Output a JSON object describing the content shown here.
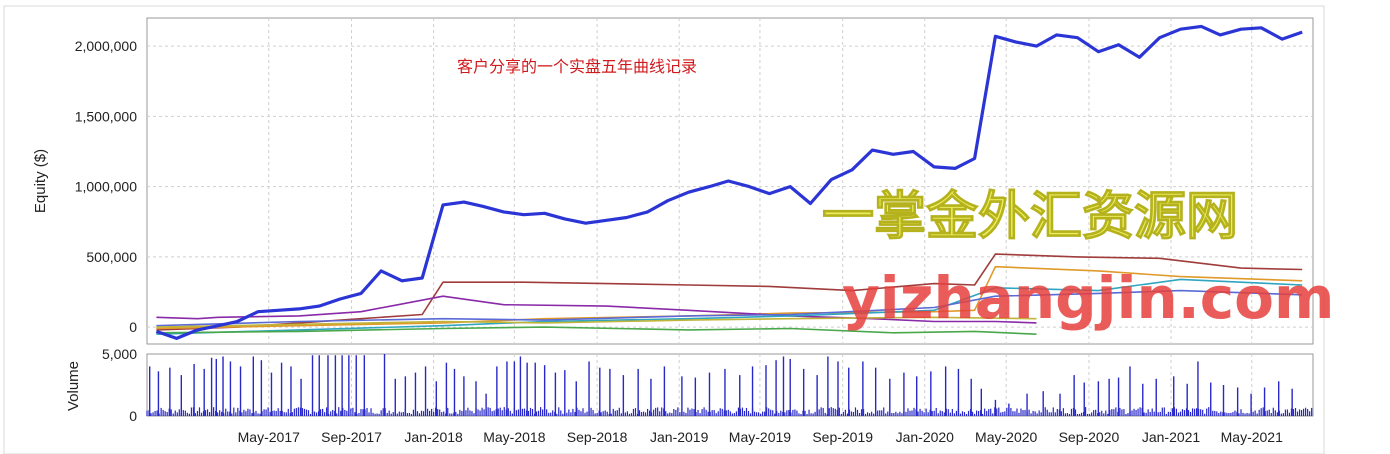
{
  "chart_data": [
    {
      "type": "line",
      "ylabel": "Equity ($)",
      "ylim": [
        -120000,
        2200000
      ],
      "yticks": [
        0,
        500000,
        1000000,
        1500000,
        2000000
      ],
      "ytick_labels": [
        "0",
        "500,000",
        "1,000,000",
        "1,500,000",
        "2,000,000"
      ],
      "grid": true,
      "annotation": "客户分享的一个实盘五年曲线记录",
      "series": [
        {
          "color": "#2b35d6",
          "x": [
            "2016-11",
            "2016-12",
            "2017-01",
            "2017-02",
            "2017-03",
            "2017-04",
            "2017-05",
            "2017-06",
            "2017-07",
            "2017-08",
            "2017-09",
            "2017-10",
            "2017-11",
            "2017-12",
            "2018-01",
            "2018-02",
            "2018-03",
            "2018-04",
            "2018-05",
            "2018-06",
            "2018-07",
            "2018-08",
            "2018-09",
            "2018-10",
            "2018-11",
            "2018-12",
            "2019-01",
            "2019-02",
            "2019-03",
            "2019-04",
            "2019-05",
            "2019-06",
            "2019-07",
            "2019-08",
            "2019-09",
            "2019-10",
            "2019-11",
            "2019-12",
            "2020-01",
            "2020-02",
            "2020-03",
            "2020-04",
            "2020-05",
            "2020-06",
            "2020-07",
            "2020-08",
            "2020-09",
            "2020-10",
            "2020-11",
            "2020-12",
            "2021-01",
            "2021-02",
            "2021-03",
            "2021-04",
            "2021-05",
            "2021-06",
            "2021-07"
          ],
          "y": [
            -30000,
            -80000,
            -20000,
            10000,
            40000,
            110000,
            120000,
            130000,
            150000,
            200000,
            240000,
            400000,
            330000,
            350000,
            870000,
            890000,
            860000,
            820000,
            800000,
            810000,
            770000,
            740000,
            760000,
            780000,
            820000,
            900000,
            960000,
            1000000,
            1040000,
            1000000,
            950000,
            1000000,
            880000,
            1050000,
            1120000,
            1260000,
            1230000,
            1250000,
            1140000,
            1130000,
            1200000,
            2070000,
            2030000,
            2000000,
            2080000,
            2060000,
            1960000,
            2010000,
            1920000,
            2060000,
            2120000,
            2140000,
            2080000,
            2120000,
            2130000,
            2050000,
            2100000
          ]
        },
        {
          "color": "#a03c3c",
          "x": [
            "2016-11",
            "2017-03",
            "2017-06",
            "2017-09",
            "2017-12",
            "2018-01",
            "2018-05",
            "2018-09",
            "2019-01",
            "2019-05",
            "2019-09",
            "2020-01",
            "2020-03",
            "2020-04",
            "2020-08",
            "2020-12",
            "2021-04",
            "2021-07"
          ],
          "y": [
            -20000,
            0,
            30000,
            60000,
            90000,
            320000,
            320000,
            310000,
            300000,
            290000,
            260000,
            310000,
            300000,
            520000,
            500000,
            490000,
            420000,
            410000
          ]
        },
        {
          "color": "#e09a2a",
          "x": [
            "2016-11",
            "2017-06",
            "2018-01",
            "2018-06",
            "2019-01",
            "2019-06",
            "2020-01",
            "2020-03",
            "2020-04",
            "2020-09",
            "2021-01",
            "2021-07"
          ],
          "y": [
            -10000,
            10000,
            30000,
            60000,
            80000,
            100000,
            110000,
            120000,
            430000,
            400000,
            360000,
            330000
          ]
        },
        {
          "color": "#8a2aa8",
          "x": [
            "2016-11",
            "2017-01",
            "2017-02",
            "2017-06",
            "2017-09",
            "2018-01",
            "2018-04",
            "2018-09",
            "2019-01",
            "2019-06",
            "2019-10",
            "2020-01",
            "2020-04",
            "2020-06"
          ],
          "y": [
            70000,
            60000,
            70000,
            80000,
            110000,
            220000,
            160000,
            150000,
            120000,
            80000,
            60000,
            40000,
            40000,
            30000
          ]
        },
        {
          "color": "#2fa5c0",
          "x": [
            "2016-11",
            "2017-06",
            "2018-01",
            "2018-06",
            "2019-01",
            "2019-06",
            "2020-01",
            "2020-04",
            "2020-09",
            "2021-01",
            "2021-07"
          ],
          "y": [
            -50000,
            -20000,
            10000,
            40000,
            60000,
            80000,
            120000,
            280000,
            260000,
            340000,
            300000
          ]
        },
        {
          "color": "#4aa84a",
          "x": [
            "2016-11",
            "2017-06",
            "2018-01",
            "2018-06",
            "2019-01",
            "2019-06",
            "2019-11",
            "2020-03",
            "2020-06"
          ],
          "y": [
            -40000,
            -30000,
            -10000,
            0,
            -20000,
            -10000,
            -40000,
            -30000,
            -50000
          ]
        },
        {
          "color": "#5a6ad6",
          "x": [
            "2016-11",
            "2017-06",
            "2018-01",
            "2018-06",
            "2019-01",
            "2019-06",
            "2020-01",
            "2020-04",
            "2020-09",
            "2021-01",
            "2021-07"
          ],
          "y": [
            10000,
            40000,
            60000,
            50000,
            80000,
            90000,
            140000,
            220000,
            240000,
            260000,
            230000
          ]
        },
        {
          "color": "#c0b43a",
          "x": [
            "2016-11",
            "2017-06",
            "2018-01",
            "2018-06",
            "2019-01",
            "2019-06",
            "2020-01",
            "2020-06"
          ],
          "y": [
            0,
            20000,
            40000,
            30000,
            50000,
            60000,
            70000,
            60000
          ]
        }
      ]
    },
    {
      "type": "bar",
      "ylabel": "Volume",
      "ylim": [
        0,
        5000
      ],
      "yticks": [
        0,
        5000
      ],
      "ytick_labels": [
        "0",
        "5,000"
      ],
      "bar_color": "#2828c8",
      "tall_bars": [
        {
          "x": "2016-11-05",
          "v": 4000
        },
        {
          "x": "2016-11-18",
          "v": 3600
        },
        {
          "x": "2016-12-05",
          "v": 3900
        },
        {
          "x": "2016-12-22",
          "v": 3300
        },
        {
          "x": "2017-01-10",
          "v": 4200
        },
        {
          "x": "2017-01-25",
          "v": 3800
        },
        {
          "x": "2017-02-05",
          "v": 4700
        },
        {
          "x": "2017-02-12",
          "v": 4600
        },
        {
          "x": "2017-02-22",
          "v": 4800
        },
        {
          "x": "2017-03-05",
          "v": 4400
        },
        {
          "x": "2017-03-20",
          "v": 4000
        },
        {
          "x": "2017-04-08",
          "v": 4800
        },
        {
          "x": "2017-04-20",
          "v": 4500
        },
        {
          "x": "2017-05-05",
          "v": 3500
        },
        {
          "x": "2017-05-20",
          "v": 4300
        },
        {
          "x": "2017-06-03",
          "v": 4000
        },
        {
          "x": "2017-06-18",
          "v": 3000
        },
        {
          "x": "2017-07-05",
          "v": 4900
        },
        {
          "x": "2017-07-15",
          "v": 4900
        },
        {
          "x": "2017-07-28",
          "v": 4900
        },
        {
          "x": "2017-08-08",
          "v": 4900
        },
        {
          "x": "2017-08-18",
          "v": 4900
        },
        {
          "x": "2017-08-28",
          "v": 4900
        },
        {
          "x": "2017-09-08",
          "v": 4900
        },
        {
          "x": "2017-09-20",
          "v": 4900
        },
        {
          "x": "2017-10-20",
          "v": 5000
        },
        {
          "x": "2017-11-05",
          "v": 3000
        },
        {
          "x": "2017-11-20",
          "v": 3200
        },
        {
          "x": "2017-12-05",
          "v": 3500
        },
        {
          "x": "2017-12-20",
          "v": 4000
        },
        {
          "x": "2018-01-05",
          "v": 2800
        },
        {
          "x": "2018-01-20",
          "v": 4300
        },
        {
          "x": "2018-02-01",
          "v": 3800
        },
        {
          "x": "2018-02-15",
          "v": 3200
        },
        {
          "x": "2018-03-05",
          "v": 2800
        },
        {
          "x": "2018-03-20",
          "v": 1800
        },
        {
          "x": "2018-04-05",
          "v": 4000
        },
        {
          "x": "2018-04-20",
          "v": 4400
        },
        {
          "x": "2018-05-01",
          "v": 4400
        },
        {
          "x": "2018-05-10",
          "v": 4800
        },
        {
          "x": "2018-05-20",
          "v": 4300
        },
        {
          "x": "2018-06-01",
          "v": 4300
        },
        {
          "x": "2018-06-15",
          "v": 4100
        },
        {
          "x": "2018-07-01",
          "v": 3500
        },
        {
          "x": "2018-07-15",
          "v": 3700
        },
        {
          "x": "2018-08-01",
          "v": 2800
        },
        {
          "x": "2018-08-20",
          "v": 4400
        },
        {
          "x": "2018-09-05",
          "v": 3900
        },
        {
          "x": "2018-09-20",
          "v": 3800
        },
        {
          "x": "2018-10-10",
          "v": 3300
        },
        {
          "x": "2018-11-01",
          "v": 3800
        },
        {
          "x": "2018-11-20",
          "v": 3000
        },
        {
          "x": "2018-12-10",
          "v": 4000
        },
        {
          "x": "2019-01-05",
          "v": 3200
        },
        {
          "x": "2019-01-25",
          "v": 3100
        },
        {
          "x": "2019-02-15",
          "v": 3500
        },
        {
          "x": "2019-03-10",
          "v": 3800
        },
        {
          "x": "2019-04-01",
          "v": 3300
        },
        {
          "x": "2019-04-20",
          "v": 4000
        },
        {
          "x": "2019-05-10",
          "v": 4100
        },
        {
          "x": "2019-05-25",
          "v": 4500
        },
        {
          "x": "2019-06-05",
          "v": 4800
        },
        {
          "x": "2019-06-15",
          "v": 4600
        },
        {
          "x": "2019-07-05",
          "v": 3800
        },
        {
          "x": "2019-07-25",
          "v": 3300
        },
        {
          "x": "2019-08-10",
          "v": 4800
        },
        {
          "x": "2019-08-25",
          "v": 4400
        },
        {
          "x": "2019-09-10",
          "v": 3900
        },
        {
          "x": "2019-10-01",
          "v": 4400
        },
        {
          "x": "2019-10-20",
          "v": 3900
        },
        {
          "x": "2019-11-10",
          "v": 3000
        },
        {
          "x": "2019-12-01",
          "v": 3500
        },
        {
          "x": "2019-12-20",
          "v": 3200
        },
        {
          "x": "2020-01-10",
          "v": 3600
        },
        {
          "x": "2020-02-01",
          "v": 4000
        },
        {
          "x": "2020-02-20",
          "v": 3800
        },
        {
          "x": "2020-03-10",
          "v": 3000
        },
        {
          "x": "2020-03-25",
          "v": 2200
        },
        {
          "x": "2020-04-15",
          "v": 1300
        },
        {
          "x": "2020-05-05",
          "v": 1000
        },
        {
          "x": "2020-06-01",
          "v": 1800
        },
        {
          "x": "2020-06-25",
          "v": 2000
        },
        {
          "x": "2020-07-20",
          "v": 1800
        },
        {
          "x": "2020-08-10",
          "v": 3300
        },
        {
          "x": "2020-08-25",
          "v": 2700
        },
        {
          "x": "2020-09-15",
          "v": 2800
        },
        {
          "x": "2020-10-01",
          "v": 3000
        },
        {
          "x": "2020-10-15",
          "v": 3100
        },
        {
          "x": "2020-11-01",
          "v": 4000
        },
        {
          "x": "2020-11-20",
          "v": 2600
        },
        {
          "x": "2020-12-10",
          "v": 3000
        },
        {
          "x": "2021-01-05",
          "v": 3200
        },
        {
          "x": "2021-01-25",
          "v": 2600
        },
        {
          "x": "2021-02-10",
          "v": 4400
        },
        {
          "x": "2021-03-01",
          "v": 2700
        },
        {
          "x": "2021-03-20",
          "v": 2500
        },
        {
          "x": "2021-04-10",
          "v": 2300
        },
        {
          "x": "2021-04-30",
          "v": 1800
        },
        {
          "x": "2021-05-20",
          "v": 2300
        },
        {
          "x": "2021-06-10",
          "v": 2800
        },
        {
          "x": "2021-06-30",
          "v": 2200
        }
      ],
      "base_level": 400
    }
  ],
  "x_range": [
    "2016-11-01",
    "2021-07-31"
  ],
  "x_ticks": [
    "2017-05-01",
    "2017-09-01",
    "2018-01-01",
    "2018-05-01",
    "2018-09-01",
    "2019-01-01",
    "2019-05-01",
    "2019-09-01",
    "2020-01-01",
    "2020-05-01",
    "2020-09-01",
    "2021-01-01",
    "2021-05-01"
  ],
  "x_tick_labels": [
    "May-2017",
    "Sep-2017",
    "Jan-2018",
    "May-2018",
    "Sep-2018",
    "Jan-2019",
    "May-2019",
    "Sep-2019",
    "Jan-2020",
    "May-2020",
    "Sep-2020",
    "Jan-2021",
    "May-2021"
  ],
  "watermark": {
    "title": "一掌金外汇资源网",
    "url": "yizhangjin.com"
  }
}
